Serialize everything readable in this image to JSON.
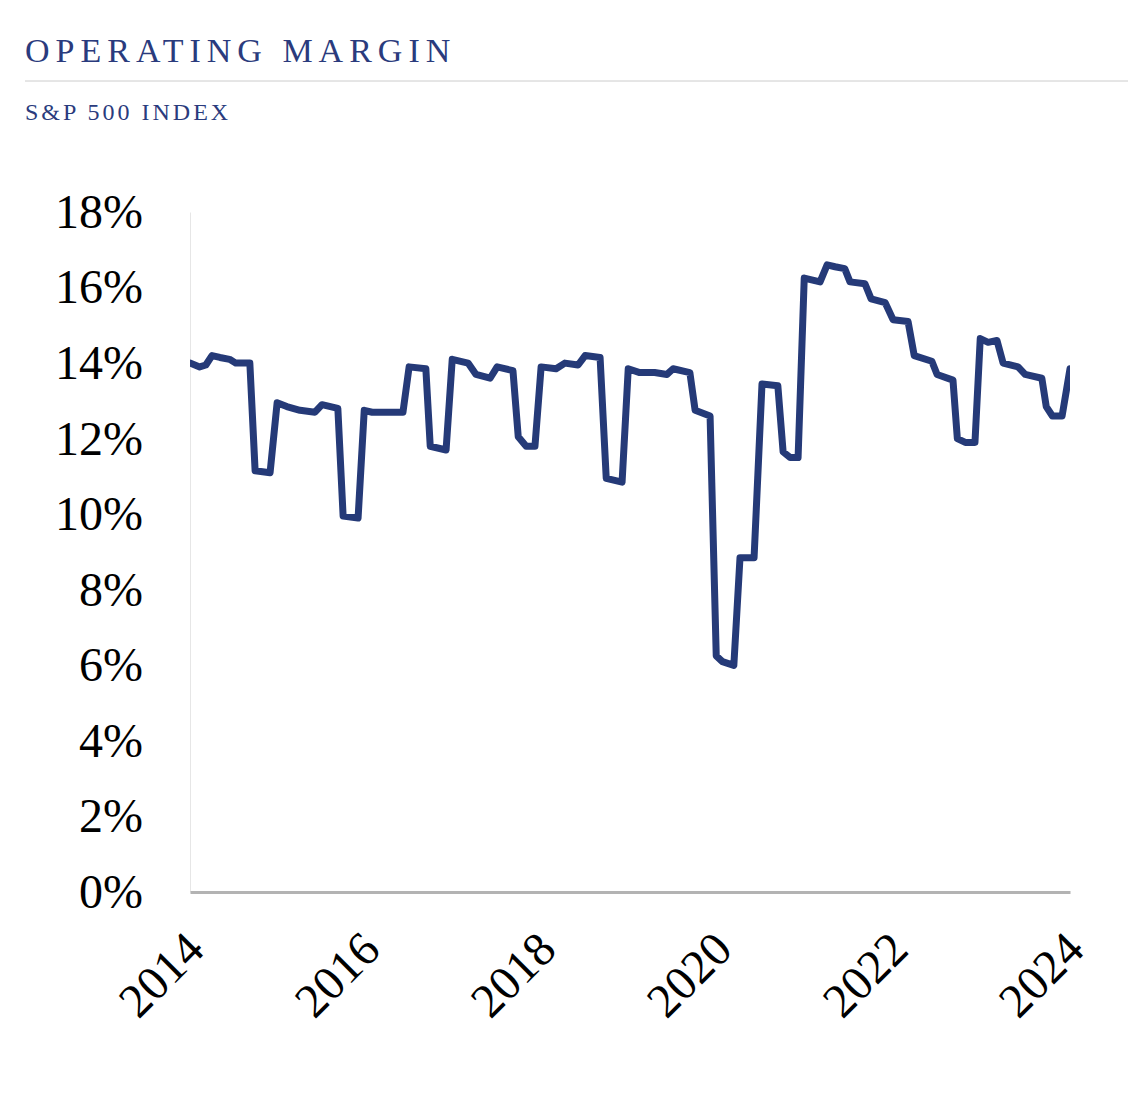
{
  "chart_data": {
    "type": "line",
    "title": "OPERATING MARGIN",
    "subtitle": "S&P 500 INDEX",
    "x": [
      2014.0,
      2014.11,
      2014.18,
      2014.25,
      2014.34,
      2014.45,
      2014.52,
      2014.68,
      2014.74,
      2014.91,
      2014.99,
      2015.1,
      2015.25,
      2015.42,
      2015.5,
      2015.68,
      2015.74,
      2015.91,
      2015.98,
      2016.07,
      2016.27,
      2016.42,
      2016.49,
      2016.68,
      2016.73,
      2016.91,
      2016.98,
      2017.16,
      2017.25,
      2017.41,
      2017.49,
      2017.67,
      2017.73,
      2017.82,
      2017.92,
      2017.99,
      2018.16,
      2018.26,
      2018.41,
      2018.49,
      2018.66,
      2018.73,
      2018.91,
      2018.98,
      2019.11,
      2019.28,
      2019.42,
      2019.49,
      2019.68,
      2019.74,
      2019.91,
      2019.98,
      2020.05,
      2020.18,
      2020.25,
      2020.41,
      2020.5,
      2020.68,
      2020.74,
      2020.82,
      2020.91,
      2020.98,
      2021.16,
      2021.24,
      2021.33,
      2021.44,
      2021.5,
      2021.67,
      2021.74,
      2021.9,
      2021.99,
      2022.16,
      2022.23,
      2022.43,
      2022.49,
      2022.67,
      2022.72,
      2022.81,
      2022.92,
      2022.98,
      2023.07,
      2023.17,
      2023.24,
      2023.41,
      2023.49,
      2023.68,
      2023.73,
      2023.8,
      2023.91,
      2024.0
    ],
    "values": [
      14.0,
      13.9,
      13.95,
      14.2,
      14.15,
      14.1,
      14.0,
      14.0,
      11.15,
      11.1,
      12.95,
      12.85,
      12.75,
      12.7,
      12.9,
      12.8,
      9.95,
      9.9,
      12.75,
      12.7,
      12.7,
      12.7,
      13.9,
      13.85,
      11.8,
      11.7,
      14.1,
      14.0,
      13.7,
      13.6,
      13.9,
      13.8,
      12.05,
      11.8,
      11.8,
      13.9,
      13.85,
      14.0,
      13.95,
      14.2,
      14.15,
      10.95,
      10.85,
      13.85,
      13.75,
      13.75,
      13.7,
      13.85,
      13.75,
      12.75,
      12.6,
      6.25,
      6.1,
      6.0,
      8.85,
      8.85,
      13.45,
      13.4,
      11.65,
      11.5,
      11.5,
      16.25,
      16.15,
      16.6,
      16.55,
      16.5,
      16.15,
      16.1,
      15.7,
      15.6,
      15.15,
      15.1,
      14.2,
      14.05,
      13.7,
      13.55,
      12.0,
      11.9,
      11.9,
      14.65,
      14.55,
      14.6,
      14.0,
      13.9,
      13.7,
      13.6,
      12.85,
      12.6,
      12.6,
      13.85
    ],
    "color": "#253a78",
    "xlim": [
      2014,
      2024
    ],
    "xticks": [
      2014,
      2016,
      2018,
      2020,
      2022,
      2024
    ],
    "ylim": [
      0,
      18
    ],
    "yticks": [
      {
        "value": 0,
        "label": "0%"
      },
      {
        "value": 2,
        "label": "2%"
      },
      {
        "value": 4,
        "label": "4%"
      },
      {
        "value": 6,
        "label": "6%"
      },
      {
        "value": 8,
        "label": "8%"
      },
      {
        "value": 10,
        "label": "10%"
      },
      {
        "value": 12,
        "label": "12%"
      },
      {
        "value": 14,
        "label": "14%"
      },
      {
        "value": 16,
        "label": "16%"
      },
      {
        "value": 18,
        "label": "18%"
      }
    ],
    "grid": false
  }
}
